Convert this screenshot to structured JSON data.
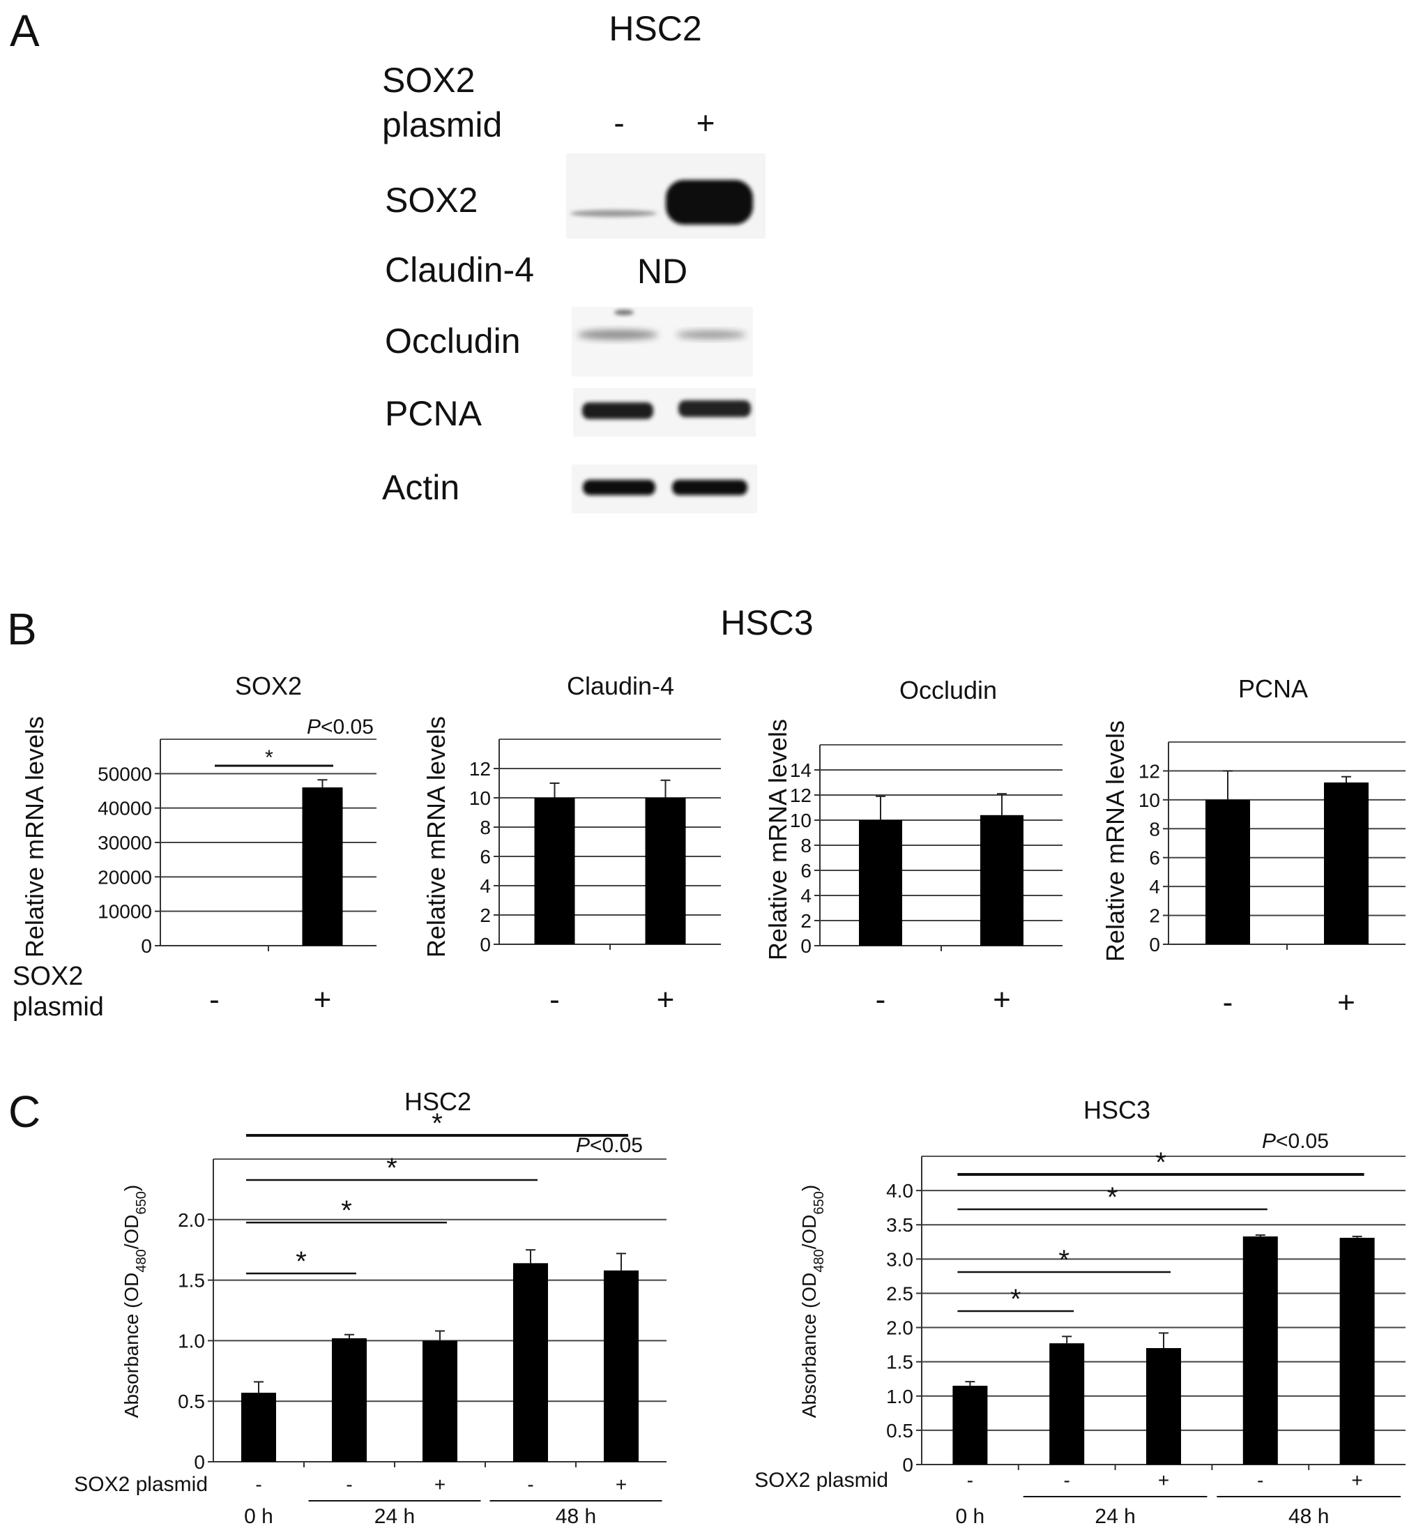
{
  "panel_a": {
    "letter": "A",
    "cell_line": "HSC2",
    "plasmid_label_line1": "SOX2",
    "plasmid_label_line2": "plasmid",
    "lane_minus": "-",
    "lane_plus": "+",
    "bands": [
      {
        "label": "SOX2",
        "minus": "faint",
        "plus": "strong"
      },
      {
        "label": "Claudin-4",
        "note": "ND"
      },
      {
        "label": "Occludin",
        "minus": "weak",
        "plus": "weak"
      },
      {
        "label": "PCNA",
        "minus": "strong",
        "plus": "strong"
      },
      {
        "label": "Actin",
        "minus": "strong",
        "plus": "strong"
      }
    ]
  },
  "panel_b": {
    "letter": "B",
    "cell_line": "HSC3",
    "plasmid_label_line1": "SOX2",
    "plasmid_label_line2": "plasmid",
    "significance": "*",
    "p_text_italic": "P",
    "p_text_rest": "<0.05"
  },
  "panel_c": {
    "letter": "C",
    "sox2_label": "SOX2 plasmid",
    "significance": "*",
    "p_text_italic": "P",
    "p_text_rest": "<0.05",
    "time_labels": [
      "0 h",
      "24 h",
      "48 h"
    ]
  },
  "chart_data": [
    {
      "id": "b1",
      "type": "bar",
      "title": "SOX2",
      "ylabel": "Relative mRNA levels",
      "categories": [
        "-",
        "+"
      ],
      "values": [
        0,
        46000
      ],
      "errors": [
        0,
        2200
      ],
      "ylim": [
        0,
        60000
      ],
      "yticks": [
        0,
        10000,
        20000,
        30000,
        40000,
        50000
      ],
      "ytick_labels": [
        "0",
        "10000",
        "20000",
        "30000",
        "40000",
        "50000"
      ],
      "grid": true,
      "significance": [
        [
          0,
          1
        ]
      ]
    },
    {
      "id": "b2",
      "type": "bar",
      "title": "Claudin-4",
      "ylabel": "Relative mRNA levels",
      "categories": [
        "-",
        "+"
      ],
      "values": [
        10,
        10
      ],
      "errors": [
        1.0,
        1.2
      ],
      "ylim": [
        0,
        14
      ],
      "yticks": [
        0,
        2,
        4,
        6,
        8,
        10,
        12
      ],
      "ytick_labels": [
        "0",
        "2",
        "4",
        "6",
        "8",
        "10",
        "12"
      ],
      "grid": true
    },
    {
      "id": "b3",
      "type": "bar",
      "title": "Occludin",
      "ylabel": "Relative mRNA levels",
      "categories": [
        "-",
        "+"
      ],
      "values": [
        10,
        10.4
      ],
      "errors": [
        1.9,
        1.7
      ],
      "ylim": [
        0,
        16
      ],
      "yticks": [
        0,
        2,
        4,
        6,
        8,
        10,
        12,
        14
      ],
      "ytick_labels": [
        "0",
        "2",
        "4",
        "6",
        "8",
        "10",
        "12",
        "14"
      ],
      "grid": true
    },
    {
      "id": "b4",
      "type": "bar",
      "title": "PCNA",
      "ylabel": "Relative mRNA levels",
      "categories": [
        "-",
        "+"
      ],
      "values": [
        10,
        11.2
      ],
      "errors": [
        2.0,
        0.4
      ],
      "ylim": [
        0,
        14
      ],
      "yticks": [
        0,
        2,
        4,
        6,
        8,
        10,
        12
      ],
      "ytick_labels": [
        "0",
        "2",
        "4",
        "6",
        "8",
        "10",
        "12"
      ],
      "grid": true
    },
    {
      "id": "c1",
      "type": "bar",
      "title": "HSC2",
      "ylabel": "Absorbance (OD480/OD650)",
      "categories": [
        "-",
        "-",
        "+",
        "-",
        "+"
      ],
      "groups": [
        "0 h",
        "24 h",
        "24 h",
        "48 h",
        "48 h"
      ],
      "values": [
        0.57,
        1.02,
        1.0,
        1.64,
        1.58
      ],
      "errors": [
        0.09,
        0.03,
        0.08,
        0.11,
        0.14
      ],
      "ylim": [
        0,
        2.5
      ],
      "yticks": [
        0,
        0.5,
        1.0,
        1.5,
        2.0
      ],
      "ytick_labels": [
        "0",
        "0.5",
        "1.0",
        "1.5",
        "2.0"
      ],
      "grid": true,
      "significance": [
        [
          0,
          1
        ],
        [
          0,
          2
        ],
        [
          0,
          3
        ],
        [
          0,
          4
        ]
      ]
    },
    {
      "id": "c2",
      "type": "bar",
      "title": "HSC3",
      "ylabel": "Absorbance (OD480/OD650)",
      "categories": [
        "-",
        "-",
        "+",
        "-",
        "+"
      ],
      "groups": [
        "0 h",
        "24 h",
        "24 h",
        "48 h",
        "48 h"
      ],
      "values": [
        1.15,
        1.77,
        1.7,
        3.33,
        3.31
      ],
      "errors": [
        0.06,
        0.1,
        0.22,
        0.02,
        0.02
      ],
      "ylim": [
        0,
        4.5
      ],
      "yticks": [
        0,
        0.5,
        1.0,
        1.5,
        2.0,
        2.5,
        3.0,
        3.5,
        4.0
      ],
      "ytick_labels": [
        "0",
        "0.5",
        "1.0",
        "1.5",
        "2.0",
        "2.5",
        "3.0",
        "3.5",
        "4.0"
      ],
      "grid": true,
      "significance": [
        [
          0,
          1
        ],
        [
          0,
          2
        ],
        [
          0,
          3
        ],
        [
          0,
          4
        ]
      ]
    }
  ]
}
